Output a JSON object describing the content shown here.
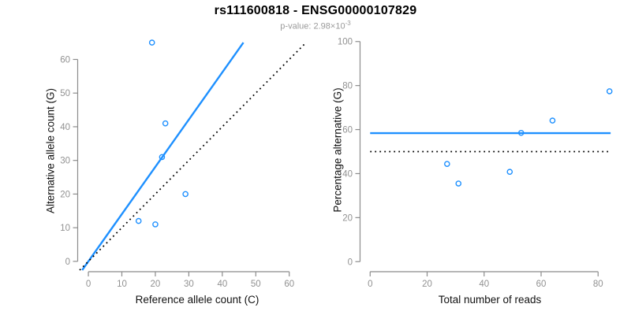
{
  "header": {
    "title": "rs111600818 - ENSG00000107829",
    "subtitle_prefix": "p-value: 2.98×10",
    "subtitle_exponent": "-3"
  },
  "colors": {
    "accent_blue": "#1E90FF",
    "axis_gray": "#8C8C8C",
    "tick_label_gray": "#919191",
    "title_black": "#000000",
    "subtitle_gray": "#9A9A9A",
    "background": "#FFFFFF"
  },
  "chart_data": [
    {
      "name": "allele-counts-scatter",
      "type": "scatter",
      "xlabel": "Reference allele count (C)",
      "ylabel": "Alternative allele count (G)",
      "xticks": [
        0,
        10,
        20,
        30,
        40,
        50,
        60
      ],
      "yticks": [
        0,
        10,
        20,
        30,
        40,
        50,
        60
      ],
      "xlim": [
        -2.6,
        67.6
      ],
      "ylim": [
        -2.6,
        67.6
      ],
      "grid": false,
      "points": [
        [
          15,
          12
        ],
        [
          20,
          11
        ],
        [
          29,
          20
        ],
        [
          22,
          31
        ],
        [
          23,
          41
        ],
        [
          19,
          65
        ]
      ],
      "point_style": {
        "shape": "open-circle",
        "color": "#1E90FF"
      },
      "lines": [
        {
          "name": "fitted-ratio-line",
          "style": "solid",
          "color": "#1E90FF",
          "x1": -1.85,
          "y1": -2.6,
          "x2": 46.3,
          "y2": 65
        },
        {
          "name": "identity-line",
          "style": "dotted",
          "color": "#000000",
          "x1": -2.6,
          "y1": -2.6,
          "x2": 65,
          "y2": 65
        }
      ]
    },
    {
      "name": "percentage-alternative-scatter",
      "type": "scatter",
      "xlabel": "Total number of reads",
      "ylabel": "Percentage alternative (G)",
      "xticks": [
        0,
        20,
        40,
        60,
        80
      ],
      "yticks": [
        0,
        20,
        40,
        60,
        80,
        100
      ],
      "xlim": [
        -3.4,
        87.4
      ],
      "ylim": [
        -4.2,
        104.2
      ],
      "grid": false,
      "points": [
        [
          27,
          44.4
        ],
        [
          31,
          35.5
        ],
        [
          49,
          40.8
        ],
        [
          53,
          58.5
        ],
        [
          64,
          64.1
        ],
        [
          84,
          77.4
        ]
      ],
      "point_style": {
        "shape": "open-circle",
        "color": "#1E90FF"
      },
      "lines": [
        {
          "name": "mean-percentage-line",
          "style": "solid",
          "color": "#1E90FF",
          "x1": 0,
          "y1": 58.4,
          "x2": 84.4,
          "y2": 58.4
        },
        {
          "name": "expected-50-percent-line",
          "style": "dotted",
          "color": "#000000",
          "x1": 0,
          "y1": 50,
          "x2": 84.4,
          "y2": 50
        }
      ]
    }
  ]
}
